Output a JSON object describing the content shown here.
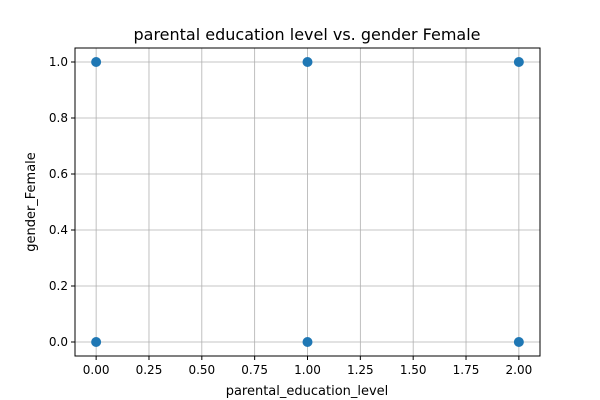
{
  "chart_data": {
    "type": "scatter",
    "title": "parental education level vs. gender Female",
    "xlabel": "parental_education_level",
    "ylabel": "gender_Female",
    "xlim": [
      -0.1,
      2.1
    ],
    "ylim": [
      -0.05,
      1.05
    ],
    "xticks": [
      0.0,
      0.25,
      0.5,
      0.75,
      1.0,
      1.25,
      1.5,
      1.75,
      2.0
    ],
    "xtick_labels": [
      "0.00",
      "0.25",
      "0.50",
      "0.75",
      "1.00",
      "1.25",
      "1.50",
      "1.75",
      "2.00"
    ],
    "yticks": [
      0.0,
      0.2,
      0.4,
      0.6,
      0.8,
      1.0
    ],
    "ytick_labels": [
      "0.0",
      "0.2",
      "0.4",
      "0.6",
      "0.8",
      "1.0"
    ],
    "grid": true,
    "marker_color": "#1f77b4",
    "points": [
      {
        "x": 0,
        "y": 1
      },
      {
        "x": 1,
        "y": 1
      },
      {
        "x": 2,
        "y": 1
      },
      {
        "x": 0,
        "y": 0
      },
      {
        "x": 1,
        "y": 0
      },
      {
        "x": 2,
        "y": 0
      }
    ]
  }
}
